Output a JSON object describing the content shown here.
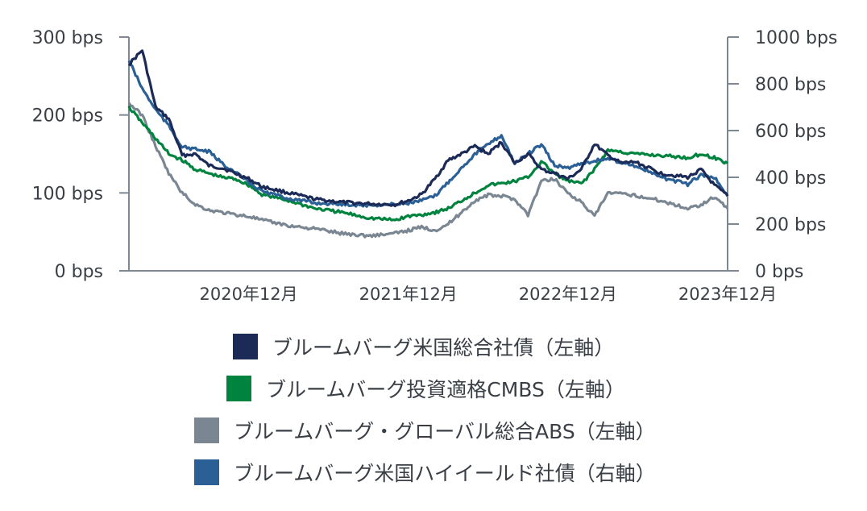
{
  "chart_data": {
    "type": "line",
    "title": "",
    "xlabel": "",
    "ylabel": "",
    "x_ticks": [
      "2020年12月",
      "2021年12月",
      "2022年12月",
      "2023年12月"
    ],
    "x_range": [
      "2020-03",
      "2023-12"
    ],
    "left_axis": {
      "ticks": [
        "0 bps",
        "100 bps",
        "200 bps",
        "300 bps"
      ],
      "ylim": [
        0,
        300
      ],
      "unit": "bps"
    },
    "right_axis": {
      "ticks": [
        "0 bps",
        "200 bps",
        "400 bps",
        "600 bps",
        "800 bps",
        "1000 bps"
      ],
      "ylim": [
        0,
        1000
      ],
      "unit": "bps"
    },
    "grid": false,
    "legend_position": "bottom",
    "series": [
      {
        "name": "ブルームバーグ米国総合社債（左軸）",
        "axis": "left",
        "color": "#1b2a57",
        "x": [
          "2020-03",
          "2020-04",
          "2020-05",
          "2020-06",
          "2020-07",
          "2020-08",
          "2020-09",
          "2020-10",
          "2020-11",
          "2020-12",
          "2021-01",
          "2021-03",
          "2021-05",
          "2021-07",
          "2021-09",
          "2021-11",
          "2021-12",
          "2022-01",
          "2022-02",
          "2022-03",
          "2022-04",
          "2022-05",
          "2022-06",
          "2022-07",
          "2022-08",
          "2022-09",
          "2022-10",
          "2022-11",
          "2022-12",
          "2023-01",
          "2023-02",
          "2023-03",
          "2023-04",
          "2023-05",
          "2023-07",
          "2023-09",
          "2023-10",
          "2023-11",
          "2023-12"
        ],
        "values": [
          265,
          283,
          210,
          195,
          148,
          150,
          135,
          132,
          125,
          118,
          108,
          100,
          92,
          88,
          86,
          85,
          90,
          98,
          118,
          142,
          150,
          160,
          150,
          165,
          138,
          150,
          130,
          125,
          118,
          130,
          163,
          148,
          138,
          140,
          125,
          120,
          130,
          110,
          96
        ]
      },
      {
        "name": "ブルームバーグ投資適格CMBS（左軸）",
        "axis": "left",
        "color": "#00833e",
        "x": [
          "2020-03",
          "2020-04",
          "2020-05",
          "2020-06",
          "2020-07",
          "2020-08",
          "2020-09",
          "2020-10",
          "2020-11",
          "2020-12",
          "2021-01",
          "2021-03",
          "2021-05",
          "2021-07",
          "2021-09",
          "2021-11",
          "2021-12",
          "2022-01",
          "2022-02",
          "2022-03",
          "2022-04",
          "2022-05",
          "2022-06",
          "2022-07",
          "2022-08",
          "2022-09",
          "2022-10",
          "2022-11",
          "2022-12",
          "2023-01",
          "2023-02",
          "2023-03",
          "2023-05",
          "2023-07",
          "2023-09",
          "2023-10",
          "2023-11",
          "2023-12"
        ],
        "values": [
          210,
          190,
          170,
          150,
          142,
          130,
          125,
          120,
          118,
          110,
          98,
          90,
          80,
          75,
          68,
          65,
          70,
          72,
          75,
          80,
          90,
          100,
          110,
          112,
          115,
          120,
          140,
          125,
          115,
          112,
          130,
          155,
          150,
          148,
          145,
          150,
          145,
          138
        ]
      },
      {
        "name": "ブルームバーグ・グローバル総合ABS（左軸）",
        "axis": "left",
        "color": "#7a8793",
        "x": [
          "2020-03",
          "2020-04",
          "2020-05",
          "2020-06",
          "2020-07",
          "2020-08",
          "2020-09",
          "2020-10",
          "2020-11",
          "2020-12",
          "2021-01",
          "2021-03",
          "2021-05",
          "2021-07",
          "2021-09",
          "2021-11",
          "2021-12",
          "2022-01",
          "2022-02",
          "2022-03",
          "2022-04",
          "2022-05",
          "2022-06",
          "2022-07",
          "2022-08",
          "2022-09",
          "2022-10",
          "2022-11",
          "2022-12",
          "2023-01",
          "2023-02",
          "2023-03",
          "2023-05",
          "2023-07",
          "2023-09",
          "2023-10",
          "2023-11",
          "2023-12"
        ],
        "values": [
          215,
          200,
          160,
          125,
          100,
          85,
          78,
          75,
          72,
          70,
          65,
          58,
          54,
          48,
          45,
          48,
          52,
          56,
          52,
          60,
          75,
          90,
          97,
          96,
          92,
          72,
          115,
          118,
          100,
          88,
          70,
          100,
          97,
          90,
          80,
          85,
          95,
          80
        ]
      },
      {
        "name": "ブルームバーグ米国ハイイールド社債（右軸）",
        "axis": "right",
        "color": "#2a6096",
        "x": [
          "2020-03",
          "2020-04",
          "2020-05",
          "2020-06",
          "2020-07",
          "2020-08",
          "2020-09",
          "2020-10",
          "2020-11",
          "2020-12",
          "2021-01",
          "2021-03",
          "2021-05",
          "2021-07",
          "2021-09",
          "2021-11",
          "2021-12",
          "2022-01",
          "2022-02",
          "2022-03",
          "2022-04",
          "2022-05",
          "2022-06",
          "2022-07",
          "2022-08",
          "2022-09",
          "2022-10",
          "2022-11",
          "2022-12",
          "2023-01",
          "2023-02",
          "2023-03",
          "2023-05",
          "2023-07",
          "2023-09",
          "2023-10",
          "2023-11",
          "2023-12"
        ],
        "values": [
          900,
          780,
          690,
          620,
          530,
          520,
          510,
          460,
          420,
          380,
          340,
          310,
          290,
          285,
          280,
          285,
          290,
          300,
          320,
          380,
          440,
          500,
          540,
          580,
          460,
          500,
          540,
          450,
          440,
          460,
          470,
          480,
          450,
          400,
          370,
          410,
          400,
          320
        ]
      }
    ]
  }
}
